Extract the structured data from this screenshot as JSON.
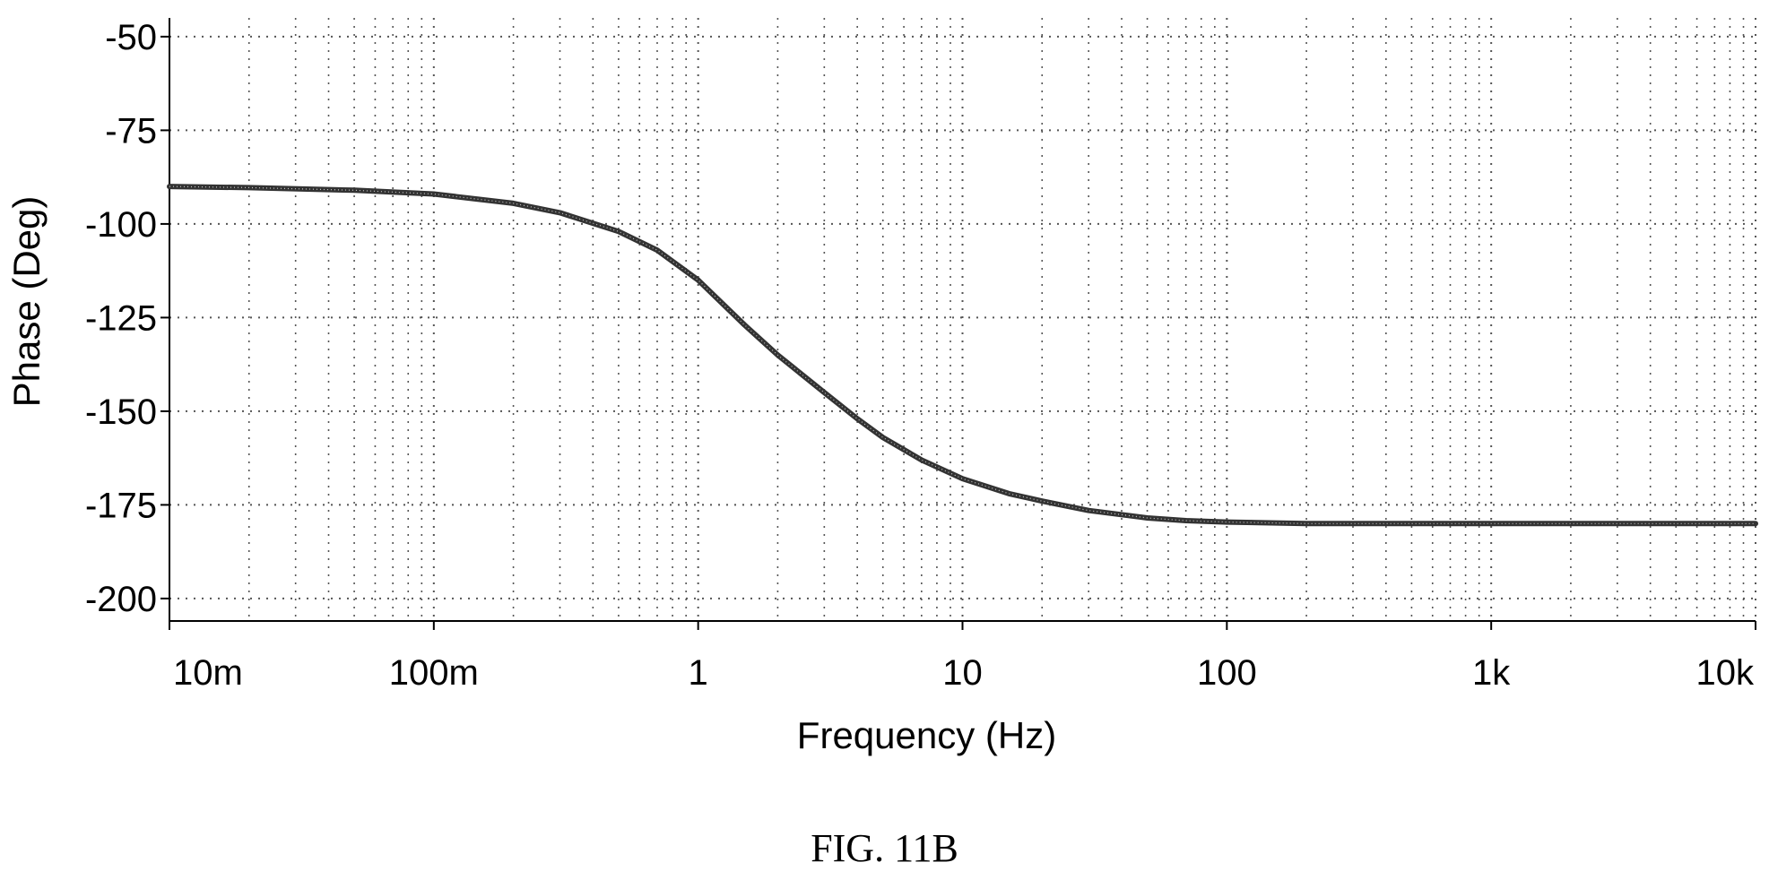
{
  "caption": "FIG. 11B",
  "chart_data": {
    "type": "line",
    "title": "",
    "xlabel": "Frequency (Hz)",
    "ylabel": "Phase (Deg)",
    "xscale": "log",
    "xlim": [
      0.01,
      10000
    ],
    "ylim": [
      -206,
      -45
    ],
    "grid": true,
    "legend": "none",
    "colors": {
      "line": "#333333",
      "grid": "#555555",
      "axis": "#000000"
    },
    "x_ticks": [
      {
        "value": 0.01,
        "label": "10m"
      },
      {
        "value": 0.1,
        "label": "100m"
      },
      {
        "value": 1,
        "label": "1"
      },
      {
        "value": 10,
        "label": "10"
      },
      {
        "value": 100,
        "label": "100"
      },
      {
        "value": 1000,
        "label": "1k"
      },
      {
        "value": 10000,
        "label": "10k"
      }
    ],
    "y_ticks": [
      {
        "value": -50,
        "label": "-50"
      },
      {
        "value": -75,
        "label": "-75"
      },
      {
        "value": -100,
        "label": "-100"
      },
      {
        "value": -125,
        "label": "-125"
      },
      {
        "value": -150,
        "label": "-150"
      },
      {
        "value": -175,
        "label": "-175"
      },
      {
        "value": -200,
        "label": "-200"
      }
    ],
    "series": [
      {
        "x": [
          0.01,
          0.02,
          0.05,
          0.1,
          0.2,
          0.3,
          0.5,
          0.7,
          1,
          1.5,
          2,
          3,
          4,
          5,
          7,
          10,
          15,
          20,
          30,
          50,
          70,
          100,
          200,
          500,
          1000,
          2000,
          5000,
          10000
        ],
        "y": [
          -90,
          -90.3,
          -91,
          -92,
          -94.5,
          -97,
          -102,
          -107,
          -115,
          -127,
          -135,
          -145,
          -152,
          -157,
          -163,
          -168,
          -172,
          -174,
          -176.5,
          -178.5,
          -179.2,
          -179.6,
          -180,
          -180,
          -180,
          -180,
          -180,
          -180
        ]
      }
    ]
  }
}
